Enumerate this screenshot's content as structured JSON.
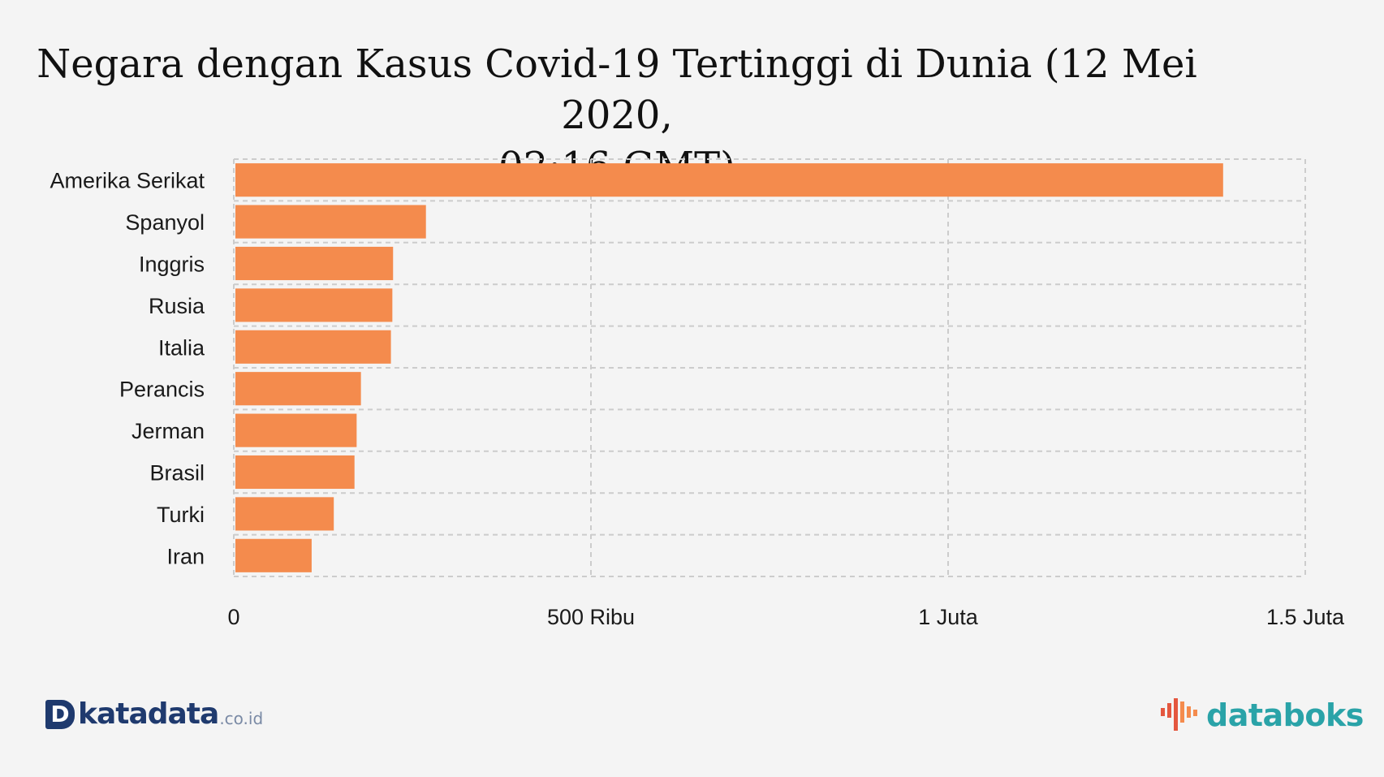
{
  "chart_data": {
    "type": "bar",
    "orientation": "horizontal",
    "title": "Negara dengan Kasus Covid-19 Tertinggi di Dunia (12 Mei 2020, 02:16 GMT)",
    "title_lines": [
      "Negara dengan Kasus Covid-19 Tertinggi di Dunia (12 Mei 2020,",
      "02:16 GMT)"
    ],
    "categories": [
      "Amerika Serikat",
      "Spanyol",
      "Inggris",
      "Rusia",
      "Italia",
      "Perancis",
      "Jerman",
      "Brasil",
      "Turki",
      "Iran"
    ],
    "values": [
      1385000,
      269000,
      223000,
      222000,
      220000,
      178000,
      172000,
      169000,
      140000,
      109000
    ],
    "xlim": [
      0,
      1500000
    ],
    "ticks": [
      {
        "value": 0,
        "label": "0"
      },
      {
        "value": 500000,
        "label": "500 Ribu"
      },
      {
        "value": 1000000,
        "label": "1 Juta"
      },
      {
        "value": 1500000,
        "label": "1.5 Juta"
      }
    ],
    "bar_color": "#f48b4d",
    "grid": true,
    "grid_color": "#cccccc"
  },
  "branding": {
    "left_mark": "D",
    "left_name": "katadata",
    "left_suffix": ".co.id",
    "left_color": "#1f3a6e",
    "right_name": "databoks",
    "right_color": "#2aa3a8",
    "right_icon": "databoks-bars-icon"
  }
}
